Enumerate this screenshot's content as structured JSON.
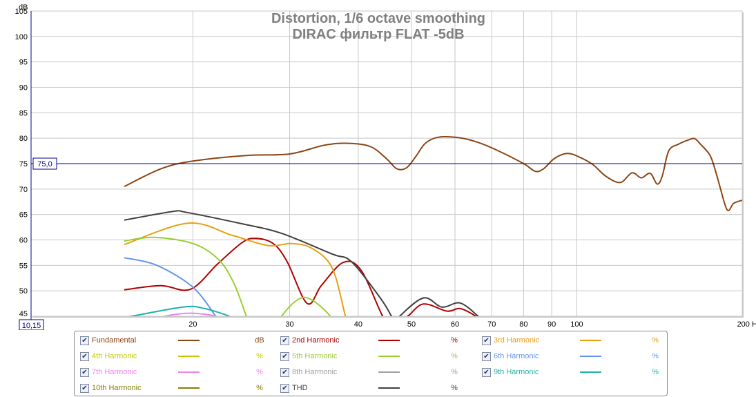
{
  "chart_data": {
    "type": "line",
    "title": "Distortion, 1/6 octave smoothing",
    "subtitle": "DIRAC фильтр FLAT -5dB",
    "ylabel": "dB",
    "xlabel": "Hz",
    "xscale": "log",
    "xlim": [
      10.15,
      200
    ],
    "ylim": [
      45,
      105
    ],
    "yticks": [
      "45",
      "50",
      "55",
      "60",
      "65",
      "70",
      "75",
      "80",
      "85",
      "90",
      "95",
      "100",
      "105"
    ],
    "xticks": [
      {
        "value": 20,
        "label": "20"
      },
      {
        "value": 30,
        "label": "30"
      },
      {
        "value": 40,
        "label": "40"
      },
      {
        "value": 50,
        "label": "50"
      },
      {
        "value": 60,
        "label": "60"
      },
      {
        "value": 70,
        "label": "70"
      },
      {
        "value": 80,
        "label": "80"
      },
      {
        "value": 90,
        "label": "90"
      },
      {
        "value": 100,
        "label": "100"
      },
      {
        "value": 200,
        "label": "200 Hz"
      }
    ],
    "cursor": {
      "y_value": 75.0,
      "y_label": "75,0",
      "x_value": 10.15,
      "x_label": "10,15"
    },
    "grid": true,
    "legend_position": "bottom",
    "series": [
      {
        "name": "Fundamental",
        "unit": "dB",
        "color": "#8b4513",
        "points": [
          [
            15,
            70.5
          ],
          [
            17.5,
            74
          ],
          [
            20,
            75.5
          ],
          [
            25,
            76.6
          ],
          [
            30,
            76.9
          ],
          [
            34.6,
            78.6
          ],
          [
            38,
            79
          ],
          [
            42,
            78.4
          ],
          [
            45,
            76
          ],
          [
            47,
            74
          ],
          [
            49,
            74.2
          ],
          [
            51,
            76.5
          ],
          [
            53,
            79
          ],
          [
            56,
            80.2
          ],
          [
            61,
            80.1
          ],
          [
            66,
            79.2
          ],
          [
            72,
            77.5
          ],
          [
            80,
            75
          ],
          [
            84,
            73.5
          ],
          [
            87,
            74
          ],
          [
            91,
            76
          ],
          [
            96,
            77
          ],
          [
            101,
            76.3
          ],
          [
            107,
            74.8
          ],
          [
            113,
            72.5
          ],
          [
            120,
            71.3
          ],
          [
            126,
            73.2
          ],
          [
            131,
            72.2
          ],
          [
            136,
            73.1
          ],
          [
            140,
            71
          ],
          [
            143,
            72.5
          ],
          [
            147,
            77.5
          ],
          [
            153,
            78.8
          ],
          [
            160,
            79.7
          ],
          [
            164,
            79.9
          ],
          [
            168,
            78.8
          ],
          [
            175,
            76.5
          ],
          [
            180,
            72.5
          ],
          [
            186,
            67
          ],
          [
            189,
            65.8
          ],
          [
            193,
            67.2
          ],
          [
            200,
            67.8
          ]
        ]
      },
      {
        "name": "2nd Harmonic",
        "unit": "%",
        "color": "#b00000",
        "points": [
          [
            15,
            50.2
          ],
          [
            17.5,
            51.0
          ],
          [
            19.8,
            50.3
          ],
          [
            22.2,
            55.3
          ],
          [
            24.6,
            59.5
          ],
          [
            26,
            60.3
          ],
          [
            28,
            59.3
          ],
          [
            29.7,
            55.7
          ],
          [
            32.3,
            47.5
          ],
          [
            34.3,
            51.1
          ],
          [
            37.6,
            55.6
          ],
          [
            40.5,
            54
          ],
          [
            44.3,
            45
          ],
          [
            46,
            43
          ],
          [
            49.2,
            45
          ],
          [
            52.6,
            47.4
          ],
          [
            58,
            46
          ],
          [
            61.3,
            46.5
          ],
          [
            65.4,
            45
          ],
          [
            67,
            43.5
          ]
        ]
      },
      {
        "name": "3rd Harmonic",
        "unit": "%",
        "color": "#e8a010",
        "points": [
          [
            15,
            59.1
          ],
          [
            19.6,
            63.3
          ],
          [
            23.6,
            60.9
          ],
          [
            27.4,
            58.9
          ],
          [
            30.3,
            59.3
          ],
          [
            33,
            58.3
          ],
          [
            35.9,
            54.4
          ],
          [
            38,
            44.6
          ],
          [
            39,
            42
          ]
        ]
      },
      {
        "name": "4th Harmonic",
        "unit": "%",
        "color": "#c8c800",
        "points": []
      },
      {
        "name": "5th Harmonic",
        "unit": "%",
        "color": "#9acd32",
        "points": [
          [
            15,
            59.8
          ],
          [
            17,
            60.5
          ],
          [
            20,
            59.3
          ],
          [
            22.2,
            56.3
          ],
          [
            23.7,
            51.7
          ],
          [
            25.1,
            44.6
          ],
          [
            25.6,
            42
          ],
          [
            28.6,
            42
          ],
          [
            29,
            45
          ],
          [
            31.9,
            48.7
          ],
          [
            35.6,
            45
          ],
          [
            36,
            42
          ]
        ]
      },
      {
        "name": "6th Harmonic",
        "unit": "%",
        "color": "#6495ed",
        "points": [
          [
            15,
            56.5
          ],
          [
            17.2,
            55
          ],
          [
            20,
            50.7
          ],
          [
            22,
            45
          ],
          [
            22.5,
            43
          ]
        ]
      },
      {
        "name": "7th Harmonic",
        "unit": "%",
        "color": "#ee82ee",
        "points": [
          [
            17,
            44
          ],
          [
            17.8,
            45
          ],
          [
            19.8,
            45.6
          ],
          [
            22,
            45
          ],
          [
            22.6,
            44
          ]
        ]
      },
      {
        "name": "8th Harmonic",
        "unit": "%",
        "color": "#a0a0a0",
        "points": []
      },
      {
        "name": "9th Harmonic",
        "unit": "%",
        "color": "#20b2aa",
        "points": [
          [
            15,
            44.7
          ],
          [
            19.2,
            46.8
          ],
          [
            21,
            46.5
          ],
          [
            23.3,
            45
          ],
          [
            24,
            44
          ]
        ]
      },
      {
        "name": "10th Harmonic",
        "unit": "%",
        "color": "#808000",
        "points": []
      },
      {
        "name": "THD",
        "unit": "%",
        "color": "#404040",
        "points": [
          [
            15,
            63.9
          ],
          [
            18.4,
            65.6
          ],
          [
            19.5,
            65.4
          ],
          [
            24.5,
            63.2
          ],
          [
            29,
            61.3
          ],
          [
            35.9,
            57.2
          ],
          [
            38.9,
            55.7
          ],
          [
            44,
            48.4
          ],
          [
            46.2,
            44.6
          ],
          [
            47,
            43.5
          ],
          [
            47.6,
            45
          ],
          [
            52.6,
            48.6
          ],
          [
            56.8,
            46.8
          ],
          [
            61.3,
            47.6
          ],
          [
            66.1,
            45
          ],
          [
            67,
            44
          ]
        ]
      }
    ]
  },
  "legend": {
    "items": [
      {
        "label": "Fundamental",
        "unit": "dB",
        "color": "#8b4513"
      },
      {
        "label": "2nd Harmonic",
        "unit": "%",
        "color": "#b00000"
      },
      {
        "label": "3rd Harmonic",
        "unit": "%",
        "color": "#e8a010"
      },
      {
        "label": "4th Harmonic",
        "unit": "%",
        "color": "#c8c800"
      },
      {
        "label": "5th Harmonic",
        "unit": "%",
        "color": "#9acd32"
      },
      {
        "label": "6th Harmonic",
        "unit": "%",
        "color": "#6495ed"
      },
      {
        "label": "7th Harmonic",
        "unit": "%",
        "color": "#ee82ee"
      },
      {
        "label": "8th Harmonic",
        "unit": "%",
        "color": "#a0a0a0"
      },
      {
        "label": "9th Harmonic",
        "unit": "%",
        "color": "#20b2aa"
      },
      {
        "label": "10th Harmonic",
        "unit": "%",
        "color": "#808000"
      },
      {
        "label": "THD",
        "unit": "%",
        "color": "#404040"
      }
    ]
  }
}
